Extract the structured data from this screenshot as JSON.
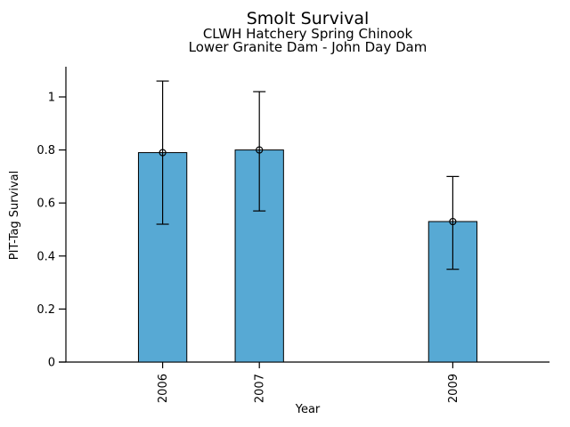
{
  "figure": {
    "title": "Smolt Survival",
    "subtitle1": "CLWH Hatchery Spring Chinook",
    "subtitle2": "Lower Granite Dam - John Day Dam"
  },
  "chart_data": {
    "type": "bar",
    "title": "Smolt Survival",
    "subtitle_lines": [
      "CLWH Hatchery Spring Chinook",
      "Lower Granite Dam - John Day Dam"
    ],
    "xlabel": "Year",
    "ylabel": "PIT-Tag Survival",
    "categories": [
      2006,
      2007,
      2009
    ],
    "xtick_labels": [
      "2006",
      "2007",
      "2009"
    ],
    "values": [
      0.79,
      0.8,
      0.53
    ],
    "error_low": [
      0.52,
      0.57,
      0.35
    ],
    "error_high": [
      1.06,
      1.02,
      0.7
    ],
    "xlim": [
      2005,
      2010
    ],
    "ylim": [
      0,
      1.114
    ],
    "yticks": [
      0,
      0.2,
      0.4,
      0.6,
      0.8,
      1
    ],
    "ytick_labels": [
      "0",
      "0.2",
      "0.4",
      "0.6",
      "0.8",
      "1"
    ],
    "bar_width_years": 0.5,
    "marker": "open-circle",
    "grid": false,
    "legend": null,
    "bar_color": "#57A9D4",
    "edge_color": "#000000",
    "axis_color": "#000000",
    "background": "#FFFFFF"
  }
}
